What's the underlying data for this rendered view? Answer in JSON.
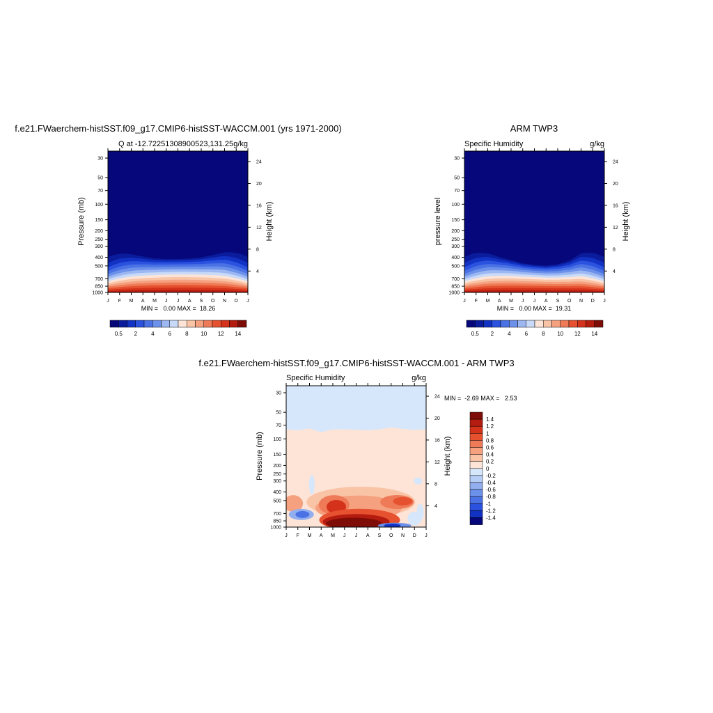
{
  "panels": [
    {
      "title": "f.e21.FWaerchem-histSST.f09_g17.CMIP6-histSST-WACCM.001 (yrs 1971-2000)",
      "subtitle_left": "Q at -12.72251308900523,131.25",
      "subtitle_right": "g/kg",
      "ylabel_left": "Pressure (mb)",
      "ylabel_right": "Height (km)",
      "minmax": "MIN =   0.00 MAX =  18.26"
    },
    {
      "title": "ARM TWP3",
      "subtitle_left": "Specific Humidity",
      "subtitle_right": "g/kg",
      "ylabel_left": "pressure level",
      "ylabel_right": "Height (km)",
      "minmax": "MIN =   0.00 MAX =  19.31"
    },
    {
      "title": "f.e21.FWaerchem-histSST.f09_g17.CMIP6-histSST-WACCM.001 - ARM TWP3",
      "subtitle_left": "Specific Humidity",
      "subtitle_right": "g/kg",
      "ylabel_left": "Pressure (mb)",
      "ylabel_right": "Height (km)",
      "minmax": "MIN =  -2.69 MAX =   2.53"
    }
  ],
  "chart_data": [
    {
      "type": "heatmap",
      "x": [
        "J",
        "F",
        "M",
        "A",
        "M",
        "J",
        "J",
        "A",
        "S",
        "O",
        "N",
        "D",
        "J"
      ],
      "pressure_ticks": [
        30,
        50,
        70,
        100,
        150,
        200,
        250,
        300,
        400,
        500,
        700,
        850,
        1000
      ],
      "height_ticks": [
        4,
        8,
        12,
        16,
        20,
        24
      ],
      "ylim": [
        1000,
        25
      ],
      "z_unit": "g/kg",
      "freezing_top_hpa_by_month": [
        290,
        310,
        340,
        375,
        400,
        410,
        410,
        405,
        390,
        360,
        320,
        300,
        290
      ],
      "surface_max": 18.26
    },
    {
      "type": "heatmap",
      "x": [
        "J",
        "F",
        "M",
        "A",
        "M",
        "J",
        "J",
        "A",
        "S",
        "O",
        "N",
        "D",
        "J"
      ],
      "pressure_ticks": [
        30,
        50,
        70,
        100,
        150,
        200,
        250,
        300,
        400,
        500,
        700,
        850,
        1000
      ],
      "height_ticks": [
        4,
        8,
        12,
        16,
        20,
        24
      ],
      "ylim": [
        1000,
        25
      ],
      "z_unit": "g/kg",
      "freezing_top_hpa_by_month": [
        290,
        300,
        330,
        380,
        420,
        460,
        480,
        490,
        470,
        420,
        330,
        300,
        290
      ],
      "surface_max": 19.31
    },
    {
      "type": "heatmap",
      "x": [
        "J",
        "F",
        "M",
        "A",
        "M",
        "J",
        "J",
        "A",
        "S",
        "O",
        "N",
        "D",
        "J"
      ],
      "pressure_ticks": [
        30,
        50,
        70,
        100,
        150,
        200,
        250,
        300,
        400,
        500,
        700,
        850,
        1000
      ],
      "height_ticks": [
        4,
        8,
        12,
        16,
        20,
        24
      ],
      "ylim": [
        1000,
        25
      ],
      "z_unit": "g/kg",
      "z_min": -2.69,
      "z_max": 2.53
    }
  ],
  "colorbar_top": {
    "colors": [
      "#05077a",
      "#0a1c9c",
      "#1232c4",
      "#2b52df",
      "#4a72e4",
      "#6c91ea",
      "#9cb7f2",
      "#c8daf8",
      "#fde4d7",
      "#f9c3a6",
      "#f5a07e",
      "#ef7a57",
      "#e6522f",
      "#d4321a",
      "#b51c10",
      "#7e0d07"
    ],
    "labels": [
      "0.5",
      "2",
      "4",
      "6",
      "8",
      "10",
      "12",
      "14"
    ]
  },
  "colorbar_diff": {
    "colors": [
      "#7e0d07",
      "#b51c10",
      "#d4321a",
      "#e6522f",
      "#ef7a57",
      "#f5a07e",
      "#f9c3a6",
      "#fde4d7",
      "#d6e7fb",
      "#b6cdf5",
      "#92aeef",
      "#6c91ea",
      "#4a72e4",
      "#2b52df",
      "#1232c4",
      "#05077a"
    ],
    "labels": [
      "1.4",
      "1.2",
      "1",
      "0.8",
      "0.6",
      "0.4",
      "0.2",
      "0",
      "-0.2",
      "-0.4",
      "-0.6",
      "-0.8",
      "-1",
      "-1.2",
      "-1.4"
    ]
  }
}
